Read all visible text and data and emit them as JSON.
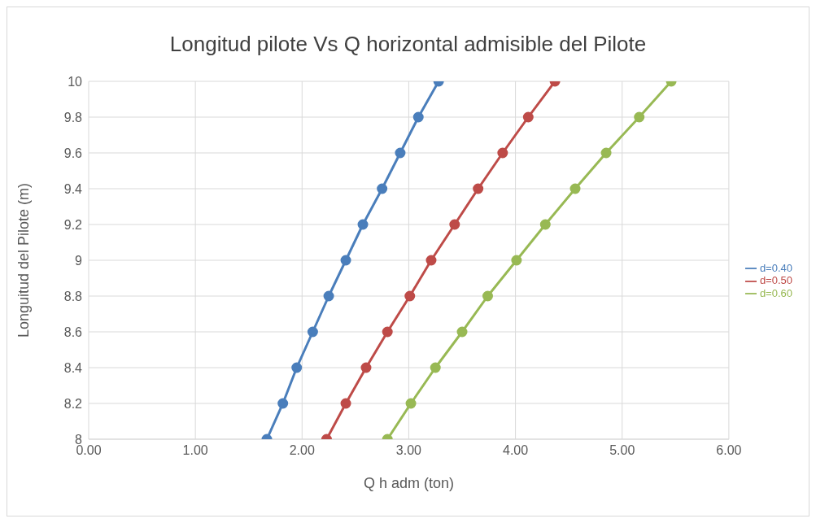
{
  "chart_data": {
    "type": "line",
    "title": "Longitud pilote Vs Q horizontal admisible del Pilote",
    "xlabel": "Q h adm (ton)",
    "ylabel": "Longuitud del Pilote (m)",
    "series": [
      {
        "name": "d=0.40",
        "color": "#4a7ebb",
        "x": [
          1.67,
          1.82,
          1.95,
          2.1,
          2.25,
          2.41,
          2.57,
          2.75,
          2.92,
          3.09,
          3.28
        ],
        "values": [
          8,
          8.2,
          8.4,
          8.6,
          8.8,
          9,
          9.2,
          9.4,
          9.6,
          9.8,
          10
        ]
      },
      {
        "name": "d=0.50",
        "color": "#be4b48",
        "x": [
          2.23,
          2.41,
          2.6,
          2.8,
          3.01,
          3.21,
          3.43,
          3.65,
          3.88,
          4.12,
          4.37
        ],
        "values": [
          8,
          8.2,
          8.4,
          8.6,
          8.8,
          9,
          9.2,
          9.4,
          9.6,
          9.8,
          10
        ]
      },
      {
        "name": "d=0.60",
        "color": "#98b954",
        "x": [
          2.8,
          3.02,
          3.25,
          3.5,
          3.74,
          4.01,
          4.28,
          4.56,
          4.85,
          5.16,
          5.46
        ],
        "values": [
          8,
          8.2,
          8.4,
          8.6,
          8.8,
          9,
          9.2,
          9.4,
          9.6,
          9.8,
          10
        ]
      }
    ],
    "xlim": [
      0,
      6
    ],
    "xticks": [
      {
        "value": 0,
        "label": "0.00"
      },
      {
        "value": 1,
        "label": "1.00"
      },
      {
        "value": 2,
        "label": "2.00"
      },
      {
        "value": 3,
        "label": "3.00"
      },
      {
        "value": 4,
        "label": "4.00"
      },
      {
        "value": 5,
        "label": "5.00"
      },
      {
        "value": 6,
        "label": "6.00"
      }
    ],
    "ylim": [
      8,
      10
    ],
    "yticks": [
      8,
      8.2,
      8.4,
      8.6,
      8.8,
      9,
      9.2,
      9.4,
      9.6,
      9.8,
      10
    ],
    "grid": true,
    "legend": "right",
    "marker": "circle",
    "line_style": "solid"
  }
}
